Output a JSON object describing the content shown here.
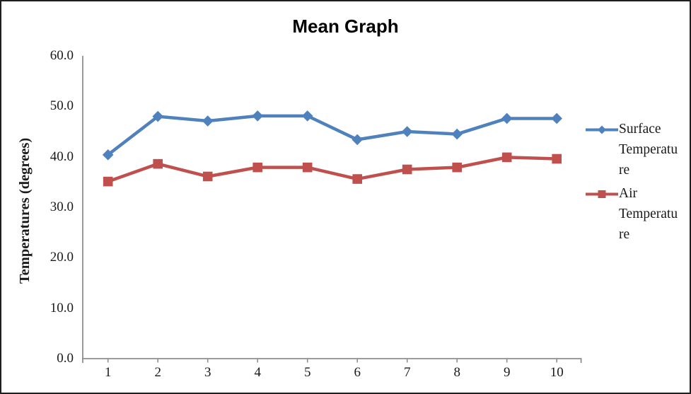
{
  "chart_data": {
    "type": "line",
    "title": "Mean Graph",
    "xlabel": "",
    "ylabel": "Temperatures (degrees)",
    "categories": [
      "1",
      "2",
      "3",
      "4",
      "5",
      "6",
      "7",
      "8",
      "9",
      "10"
    ],
    "series": [
      {
        "name": "Surface Temperature",
        "color": "#4F81BD",
        "marker": "diamond",
        "values": [
          40.4,
          48.0,
          47.1,
          48.1,
          48.1,
          43.4,
          45.0,
          44.5,
          47.6,
          47.6
        ]
      },
      {
        "name": "Air Temperature",
        "color": "#C0504D",
        "marker": "square",
        "values": [
          35.1,
          38.6,
          36.1,
          37.9,
          37.9,
          35.6,
          37.5,
          37.9,
          39.9,
          39.6
        ]
      }
    ],
    "ylim": [
      0,
      60
    ],
    "yticks": [
      0,
      10,
      20,
      30,
      40,
      50,
      60
    ],
    "ytick_labels": [
      "0.0",
      "10.0",
      "20.0",
      "30.0",
      "40.0",
      "50.0",
      "60.0"
    ],
    "grid": false,
    "legend_position": "right",
    "axis_color": "#8e8e8e",
    "text_color": "#1a1a1a"
  }
}
